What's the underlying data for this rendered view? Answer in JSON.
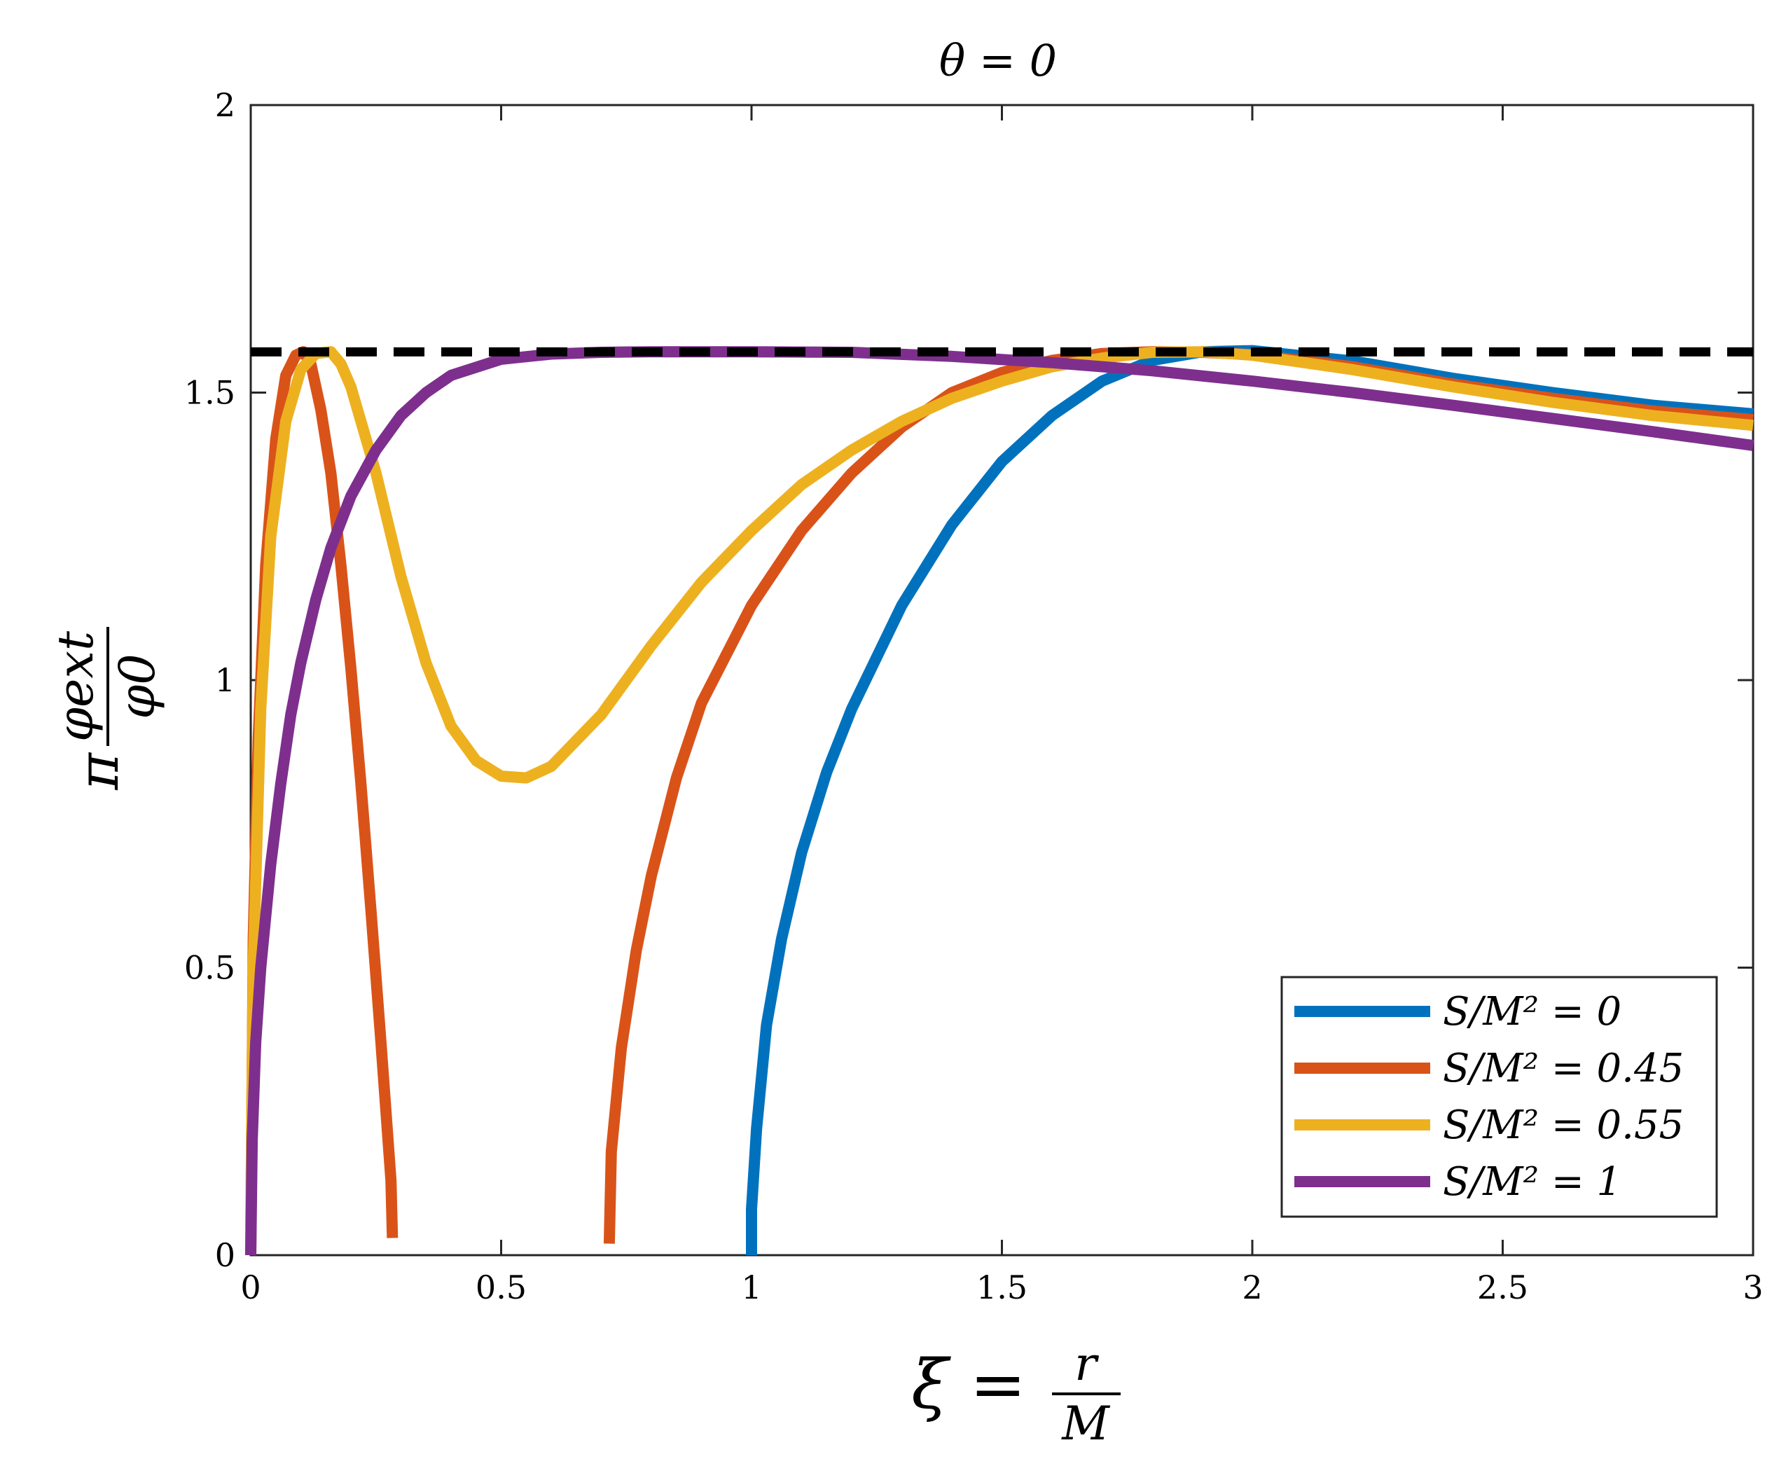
{
  "chart_data": {
    "type": "line",
    "title": "θ = 0",
    "xlabel": {
      "lhs": "ξ =",
      "num": "r",
      "den": "M"
    },
    "ylabel": {
      "lhs": "π",
      "num": "φext",
      "den": "φ0"
    },
    "xlim": [
      0,
      3
    ],
    "ylim": [
      0,
      2
    ],
    "xticks": [
      0,
      0.5,
      1,
      1.5,
      2,
      2.5,
      3
    ],
    "xtick_labels": [
      "0",
      "0.5",
      "1",
      "1.5",
      "2",
      "2.5",
      "3"
    ],
    "yticks": [
      0,
      0.5,
      1,
      1.5,
      2
    ],
    "ytick_labels": [
      "0",
      "0.5",
      "1",
      "1.5",
      "2"
    ],
    "reference_line": {
      "y": 1.5708,
      "style": "dashed",
      "color": "#000000"
    },
    "legend_position": "bottom-right",
    "grid": false,
    "series": [
      {
        "name": "S/M² = 0",
        "color": "#0072BD",
        "segments": [
          [
            [
              1.0,
              0.0
            ],
            [
              1.0,
              0.08
            ],
            [
              1.01,
              0.22
            ],
            [
              1.03,
              0.4
            ],
            [
              1.06,
              0.55
            ],
            [
              1.1,
              0.7
            ],
            [
              1.15,
              0.84
            ],
            [
              1.2,
              0.95
            ],
            [
              1.3,
              1.13
            ],
            [
              1.4,
              1.27
            ],
            [
              1.5,
              1.38
            ],
            [
              1.6,
              1.46
            ],
            [
              1.7,
              1.52
            ],
            [
              1.8,
              1.556
            ],
            [
              1.9,
              1.571
            ],
            [
              2.0,
              1.573
            ],
            [
              2.2,
              1.555
            ],
            [
              2.4,
              1.525
            ],
            [
              2.6,
              1.5
            ],
            [
              2.8,
              1.478
            ],
            [
              3.0,
              1.463
            ]
          ]
        ]
      },
      {
        "name": "S/M² = 0.45",
        "color": "#D95319",
        "segments": [
          [
            [
              0.0,
              0.0
            ],
            [
              0.005,
              0.55
            ],
            [
              0.015,
              0.9
            ],
            [
              0.03,
              1.2
            ],
            [
              0.05,
              1.42
            ],
            [
              0.07,
              1.53
            ],
            [
              0.09,
              1.565
            ],
            [
              0.105,
              1.571
            ],
            [
              0.12,
              1.55
            ],
            [
              0.14,
              1.47
            ],
            [
              0.16,
              1.36
            ],
            [
              0.18,
              1.2
            ],
            [
              0.2,
              1.02
            ],
            [
              0.22,
              0.82
            ],
            [
              0.24,
              0.6
            ],
            [
              0.26,
              0.37
            ],
            [
              0.28,
              0.13
            ],
            [
              0.283,
              0.03
            ]
          ],
          [
            [
              0.716,
              0.02
            ],
            [
              0.72,
              0.18
            ],
            [
              0.74,
              0.36
            ],
            [
              0.77,
              0.53
            ],
            [
              0.8,
              0.66
            ],
            [
              0.85,
              0.83
            ],
            [
              0.9,
              0.96
            ],
            [
              1.0,
              1.13
            ],
            [
              1.1,
              1.26
            ],
            [
              1.2,
              1.36
            ],
            [
              1.3,
              1.44
            ],
            [
              1.4,
              1.5
            ],
            [
              1.5,
              1.535
            ],
            [
              1.6,
              1.556
            ],
            [
              1.7,
              1.568
            ],
            [
              1.8,
              1.571
            ],
            [
              1.9,
              1.57
            ],
            [
              2.0,
              1.566
            ],
            [
              2.2,
              1.545
            ],
            [
              2.4,
              1.515
            ],
            [
              2.6,
              1.49
            ],
            [
              2.8,
              1.468
            ],
            [
              3.0,
              1.453
            ]
          ]
        ]
      },
      {
        "name": "S/M² = 0.55",
        "color": "#EDB120",
        "segments": [
          [
            [
              0.0,
              0.05
            ],
            [
              0.005,
              0.5
            ],
            [
              0.02,
              0.95
            ],
            [
              0.04,
              1.25
            ],
            [
              0.07,
              1.45
            ],
            [
              0.1,
              1.54
            ],
            [
              0.13,
              1.568
            ],
            [
              0.16,
              1.571
            ],
            [
              0.18,
              1.55
            ],
            [
              0.2,
              1.51
            ],
            [
              0.25,
              1.36
            ],
            [
              0.3,
              1.18
            ],
            [
              0.35,
              1.03
            ],
            [
              0.4,
              0.92
            ],
            [
              0.45,
              0.86
            ],
            [
              0.5,
              0.833
            ],
            [
              0.55,
              0.83
            ],
            [
              0.6,
              0.85
            ],
            [
              0.7,
              0.94
            ],
            [
              0.8,
              1.06
            ],
            [
              0.9,
              1.17
            ],
            [
              1.0,
              1.26
            ],
            [
              1.1,
              1.34
            ],
            [
              1.2,
              1.4
            ],
            [
              1.3,
              1.45
            ],
            [
              1.4,
              1.49
            ],
            [
              1.5,
              1.52
            ],
            [
              1.6,
              1.545
            ],
            [
              1.7,
              1.56
            ],
            [
              1.8,
              1.57
            ],
            [
              1.9,
              1.571
            ],
            [
              2.0,
              1.565
            ],
            [
              2.2,
              1.54
            ],
            [
              2.4,
              1.51
            ],
            [
              2.6,
              1.483
            ],
            [
              2.8,
              1.46
            ],
            [
              3.0,
              1.443
            ]
          ]
        ]
      },
      {
        "name": "S/M² = 1",
        "color": "#7E2F8E",
        "segments": [
          [
            [
              0.0,
              0.0
            ],
            [
              0.003,
              0.2
            ],
            [
              0.01,
              0.37
            ],
            [
              0.02,
              0.5
            ],
            [
              0.04,
              0.68
            ],
            [
              0.06,
              0.82
            ],
            [
              0.08,
              0.94
            ],
            [
              0.1,
              1.03
            ],
            [
              0.13,
              1.14
            ],
            [
              0.16,
              1.23
            ],
            [
              0.2,
              1.32
            ],
            [
              0.25,
              1.4
            ],
            [
              0.3,
              1.46
            ],
            [
              0.35,
              1.5
            ],
            [
              0.4,
              1.53
            ],
            [
              0.5,
              1.558
            ],
            [
              0.6,
              1.567
            ],
            [
              0.7,
              1.57
            ],
            [
              0.8,
              1.571
            ],
            [
              1.0,
              1.571
            ],
            [
              1.2,
              1.57
            ],
            [
              1.4,
              1.563
            ],
            [
              1.6,
              1.552
            ],
            [
              1.8,
              1.538
            ],
            [
              2.0,
              1.52
            ],
            [
              2.2,
              1.5
            ],
            [
              2.4,
              1.478
            ],
            [
              2.6,
              1.455
            ],
            [
              2.8,
              1.432
            ],
            [
              3.0,
              1.408
            ]
          ]
        ]
      }
    ]
  }
}
